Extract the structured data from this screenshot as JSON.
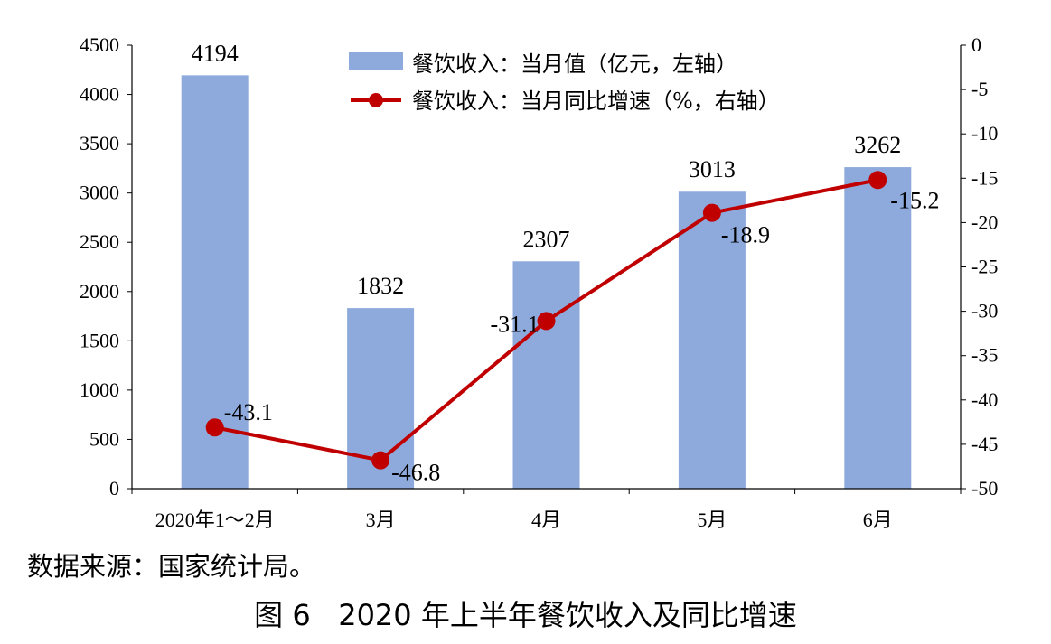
{
  "chart_data": {
    "type": "bar+line",
    "categories": [
      "2020年1～2月",
      "3月",
      "4月",
      "5月",
      "6月"
    ],
    "series": [
      {
        "name": "餐饮收入：当月值（亿元，左轴）",
        "type": "bar",
        "axis": "left",
        "values": [
          4194,
          1832,
          2307,
          3013,
          3262
        ],
        "labels": [
          "4194",
          "1832",
          "2307",
          "3013",
          "3262"
        ]
      },
      {
        "name": "餐饮收入：当月同比增速（%，右轴）",
        "type": "line",
        "axis": "right",
        "values": [
          -43.1,
          -46.8,
          -31.1,
          -18.9,
          -15.2
        ],
        "labels": [
          "-43.1",
          "-46.8",
          "-31.1",
          "-18.9",
          "-15.2"
        ]
      }
    ],
    "left_axis": {
      "ylim": [
        0,
        4500
      ],
      "ticks": [
        0,
        500,
        1000,
        1500,
        2000,
        2500,
        3000,
        3500,
        4000,
        4500
      ],
      "tick_labels": [
        "0",
        "500",
        "1000",
        "1500",
        "2000",
        "2500",
        "3000",
        "3500",
        "4000",
        "4500"
      ]
    },
    "right_axis": {
      "ylim": [
        -50,
        0
      ],
      "ticks": [
        0,
        -5,
        -10,
        -15,
        -20,
        -25,
        -30,
        -35,
        -40,
        -45,
        -50
      ],
      "tick_labels": [
        "0",
        "-5",
        "-10",
        "-15",
        "-20",
        "-25",
        "-30",
        "-35",
        "-40",
        "-45",
        "-50"
      ]
    },
    "legend_position": "top-center",
    "grid": false,
    "colors": {
      "bar": "#8eaadc",
      "line": "#c00000"
    }
  },
  "source_note": "数据来源：国家统计局。",
  "caption": "图 6   2020 年上半年餐饮收入及同比增速"
}
